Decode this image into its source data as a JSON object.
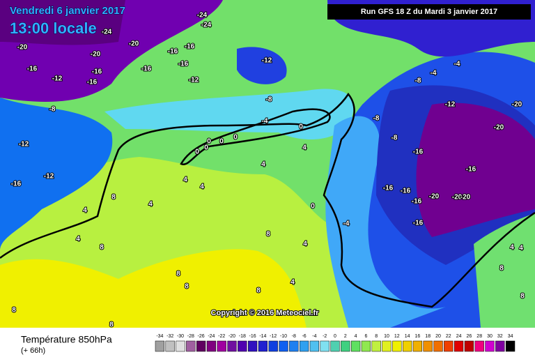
{
  "header": {
    "date": "Vendredi 6 janvier 2017",
    "time": "13:00 locale",
    "run": "Run GFS 18 Z du Mardi 3 janvier 2017"
  },
  "copyright": "Copyright © 2016 Meteociel.fr",
  "footer": {
    "title": "Température 850hPa",
    "lead": "(+ 66h)"
  },
  "colorbar": {
    "labels": [
      -34,
      -32,
      -30,
      -28,
      -26,
      -24,
      -22,
      -20,
      -18,
      -16,
      -14,
      -12,
      -10,
      -8,
      -6,
      -4,
      -2,
      0,
      2,
      4,
      6,
      8,
      10,
      12,
      14,
      16,
      18,
      20,
      22,
      24,
      26,
      28,
      30,
      32,
      34
    ],
    "colors": [
      "#a0a0a0",
      "#c0c0c0",
      "#e0e0e0",
      "#a060a0",
      "#600060",
      "#800080",
      "#a000a0",
      "#7010a0",
      "#5000b0",
      "#3010c0",
      "#2020d0",
      "#1040e0",
      "#1060f0",
      "#2080f0",
      "#30a0f0",
      "#50c0f0",
      "#80e0f0",
      "#50d0b0",
      "#40d080",
      "#60e060",
      "#90e850",
      "#c0f040",
      "#e0f020",
      "#f0f000",
      "#f0d000",
      "#f0b000",
      "#f09000",
      "#f07000",
      "#f04000",
      "#e00000",
      "#c00000",
      "#f00080",
      "#d000d0",
      "#8000a0",
      "#000000"
    ]
  },
  "map_labels": [
    -24,
    -24,
    -24,
    -20,
    -20,
    -20,
    -16,
    -16,
    -16,
    -16,
    -16,
    -16,
    -16,
    -12,
    -12,
    -12,
    -8,
    -8,
    -4,
    0,
    0,
    0,
    0,
    0,
    0,
    4,
    4,
    4,
    4,
    4,
    4,
    4,
    8,
    8,
    8,
    8,
    8,
    8,
    8,
    8,
    4,
    4,
    0,
    -4,
    -12,
    -12,
    -16,
    -8,
    -8,
    -4,
    -4,
    -12,
    -20,
    -20,
    -16,
    -16,
    -16,
    -16,
    -16,
    -20,
    -20,
    -20,
    -16,
    4,
    4,
    8,
    8,
    -8
  ]
}
